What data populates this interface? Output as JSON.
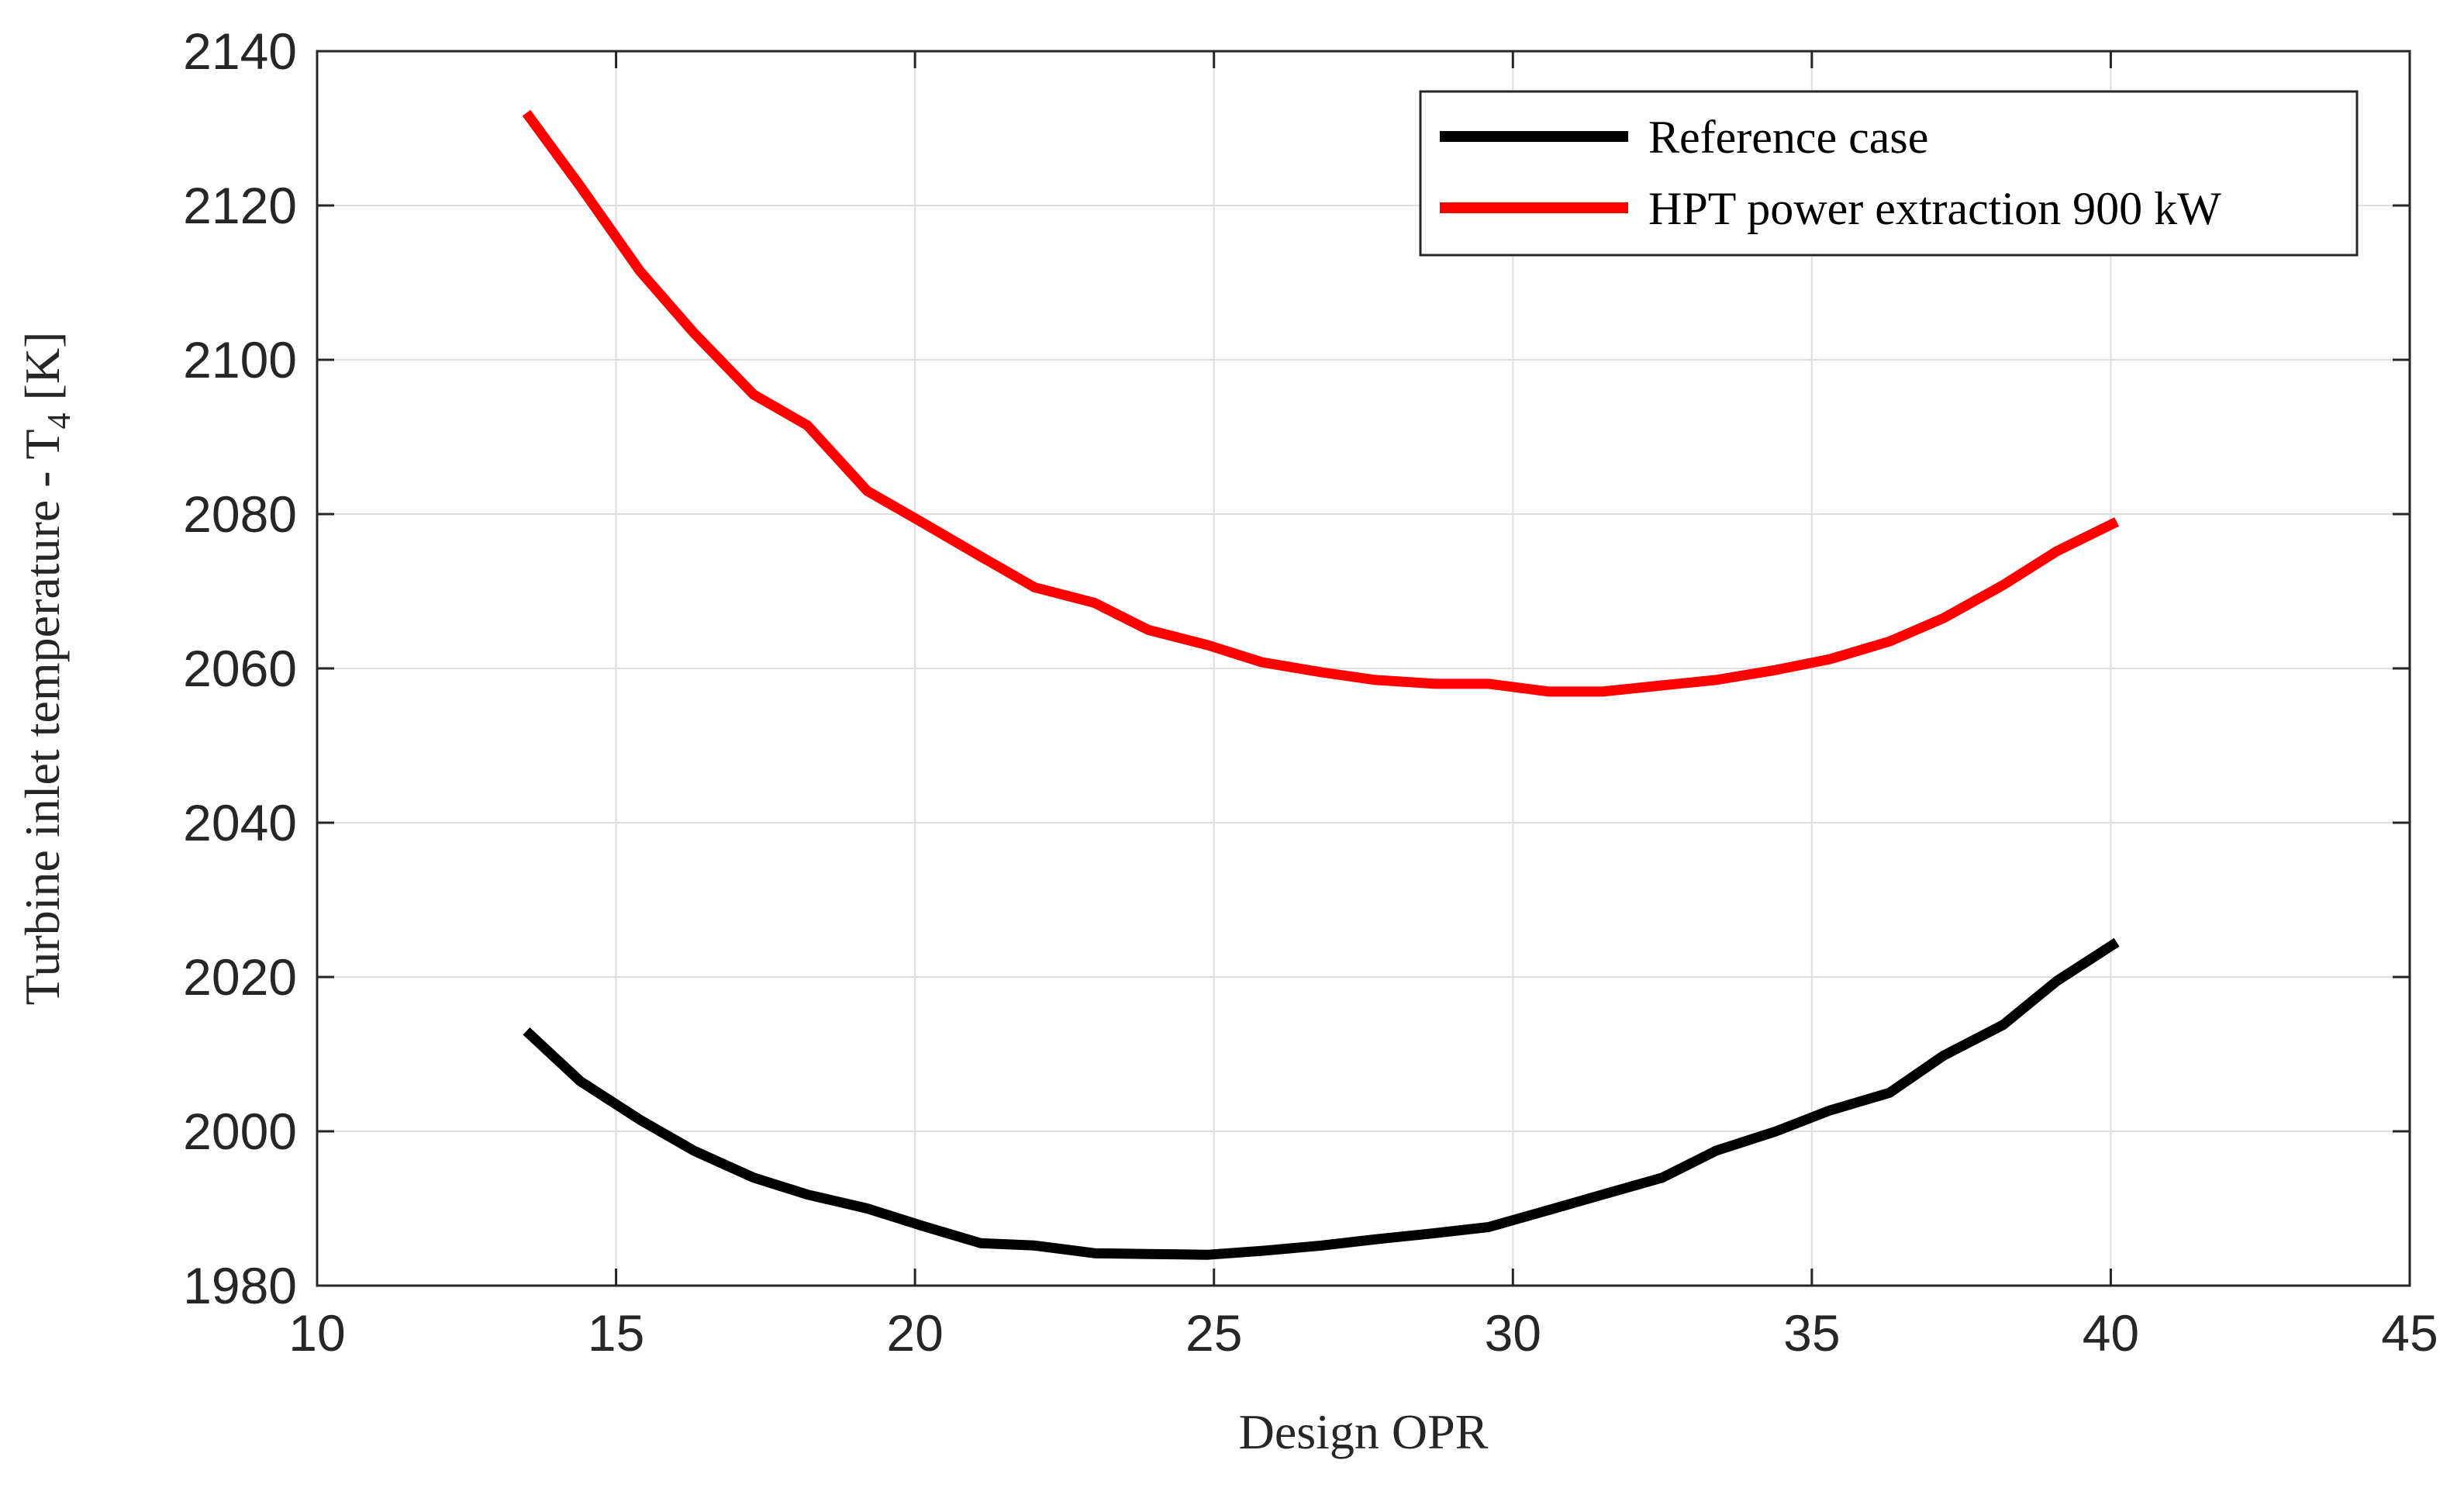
{
  "chart_data": {
    "type": "line",
    "title": "",
    "xlabel": "Design OPR",
    "ylabel": {
      "main": "Turbine inlet temperature - T",
      "subscript": "4",
      "unit": " [K]"
    },
    "xlim": [
      10,
      45
    ],
    "ylim": [
      1980,
      2140
    ],
    "xticks": [
      10,
      15,
      20,
      25,
      30,
      35,
      40,
      45
    ],
    "yticks": [
      1980,
      2000,
      2020,
      2040,
      2060,
      2080,
      2100,
      2120,
      2140
    ],
    "grid": true,
    "legend_position": "top-right",
    "series": [
      {
        "name": "Reference case",
        "color": "#000000",
        "x": [
          13.5,
          14.4,
          15.4,
          16.3,
          17.3,
          18.2,
          19.2,
          20.1,
          21.1,
          22.0,
          23.0,
          23.9,
          24.9,
          25.8,
          26.8,
          27.7,
          28.7,
          29.6,
          30.6,
          31.5,
          32.5,
          33.4,
          34.4,
          35.3,
          36.3,
          37.2,
          38.2,
          39.1,
          40.1
        ],
        "values": [
          2013,
          2006.5,
          2001.5,
          1997.5,
          1994,
          1991.8,
          1990,
          1987.8,
          1985.5,
          1985.2,
          1984.2,
          1984.1,
          1984.0,
          1984.5,
          1985.2,
          1986.0,
          1986.8,
          1987.6,
          1989.8,
          1991.8,
          1994.0,
          1997.5,
          2000.0,
          2002.7,
          2005.0,
          2009.8,
          2013.8,
          2019.5,
          2024.5
        ]
      },
      {
        "name": "HPT power extraction 900 kW",
        "color": "#ff0000",
        "x": [
          13.5,
          14.4,
          15.4,
          16.3,
          17.3,
          18.2,
          19.2,
          20.1,
          21.1,
          22.0,
          23.0,
          23.9,
          24.9,
          25.8,
          26.8,
          27.7,
          28.7,
          29.6,
          30.6,
          31.5,
          32.5,
          33.4,
          34.4,
          35.3,
          36.3,
          37.2,
          38.2,
          39.1,
          40.1
        ],
        "values": [
          2132,
          2122.5,
          2111.5,
          2103.5,
          2095.5,
          2091.5,
          2083.0,
          2079.0,
          2074.5,
          2070.5,
          2068.5,
          2065.0,
          2063.0,
          2060.8,
          2059.5,
          2058.5,
          2058.0,
          2058.0,
          2057.0,
          2057.0,
          2057.8,
          2058.5,
          2059.8,
          2061.2,
          2063.5,
          2066.5,
          2070.8,
          2075.2,
          2079.0
        ]
      }
    ]
  }
}
